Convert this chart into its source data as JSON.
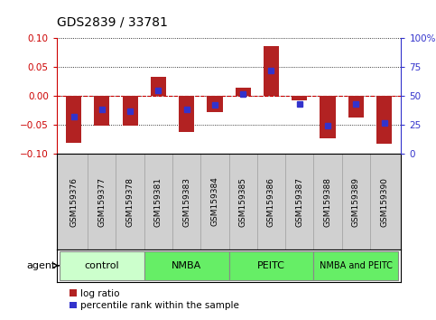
{
  "title": "GDS2839 / 33781",
  "samples": [
    "GSM159376",
    "GSM159377",
    "GSM159378",
    "GSM159381",
    "GSM159383",
    "GSM159384",
    "GSM159385",
    "GSM159386",
    "GSM159387",
    "GSM159388",
    "GSM159389",
    "GSM159390"
  ],
  "log_ratio": [
    -0.082,
    -0.051,
    -0.051,
    0.033,
    -0.063,
    -0.028,
    0.015,
    0.087,
    -0.008,
    -0.073,
    -0.037,
    -0.083
  ],
  "percentile_rank": [
    32,
    38,
    37,
    55,
    38,
    42,
    52,
    72,
    43,
    24,
    43,
    27
  ],
  "bar_color": "#b22222",
  "marker_color": "#3333cc",
  "groups": [
    {
      "label": "control",
      "start": 0,
      "end": 3,
      "color": "#ccffcc"
    },
    {
      "label": "NMBA",
      "start": 3,
      "end": 6,
      "color": "#66ee66"
    },
    {
      "label": "PEITC",
      "start": 6,
      "end": 9,
      "color": "#66ee66"
    },
    {
      "label": "NMBA and PEITC",
      "start": 9,
      "end": 12,
      "color": "#66ee66"
    }
  ],
  "ylim_left": [
    -0.1,
    0.1
  ],
  "ylim_right": [
    0,
    100
  ],
  "yticks_left": [
    -0.1,
    -0.05,
    0,
    0.05,
    0.1
  ],
  "yticks_right": [
    0,
    25,
    50,
    75,
    100
  ],
  "ytick_labels_right": [
    "0",
    "25",
    "50",
    "75",
    "100%"
  ],
  "bar_width": 0.55,
  "bg_color": "#ffffff",
  "plot_bg": "#ffffff",
  "zero_line_color": "#cc0000",
  "agent_label": "agent",
  "legend_label_ratio": "log ratio",
  "legend_label_pct": "percentile rank within the sample"
}
